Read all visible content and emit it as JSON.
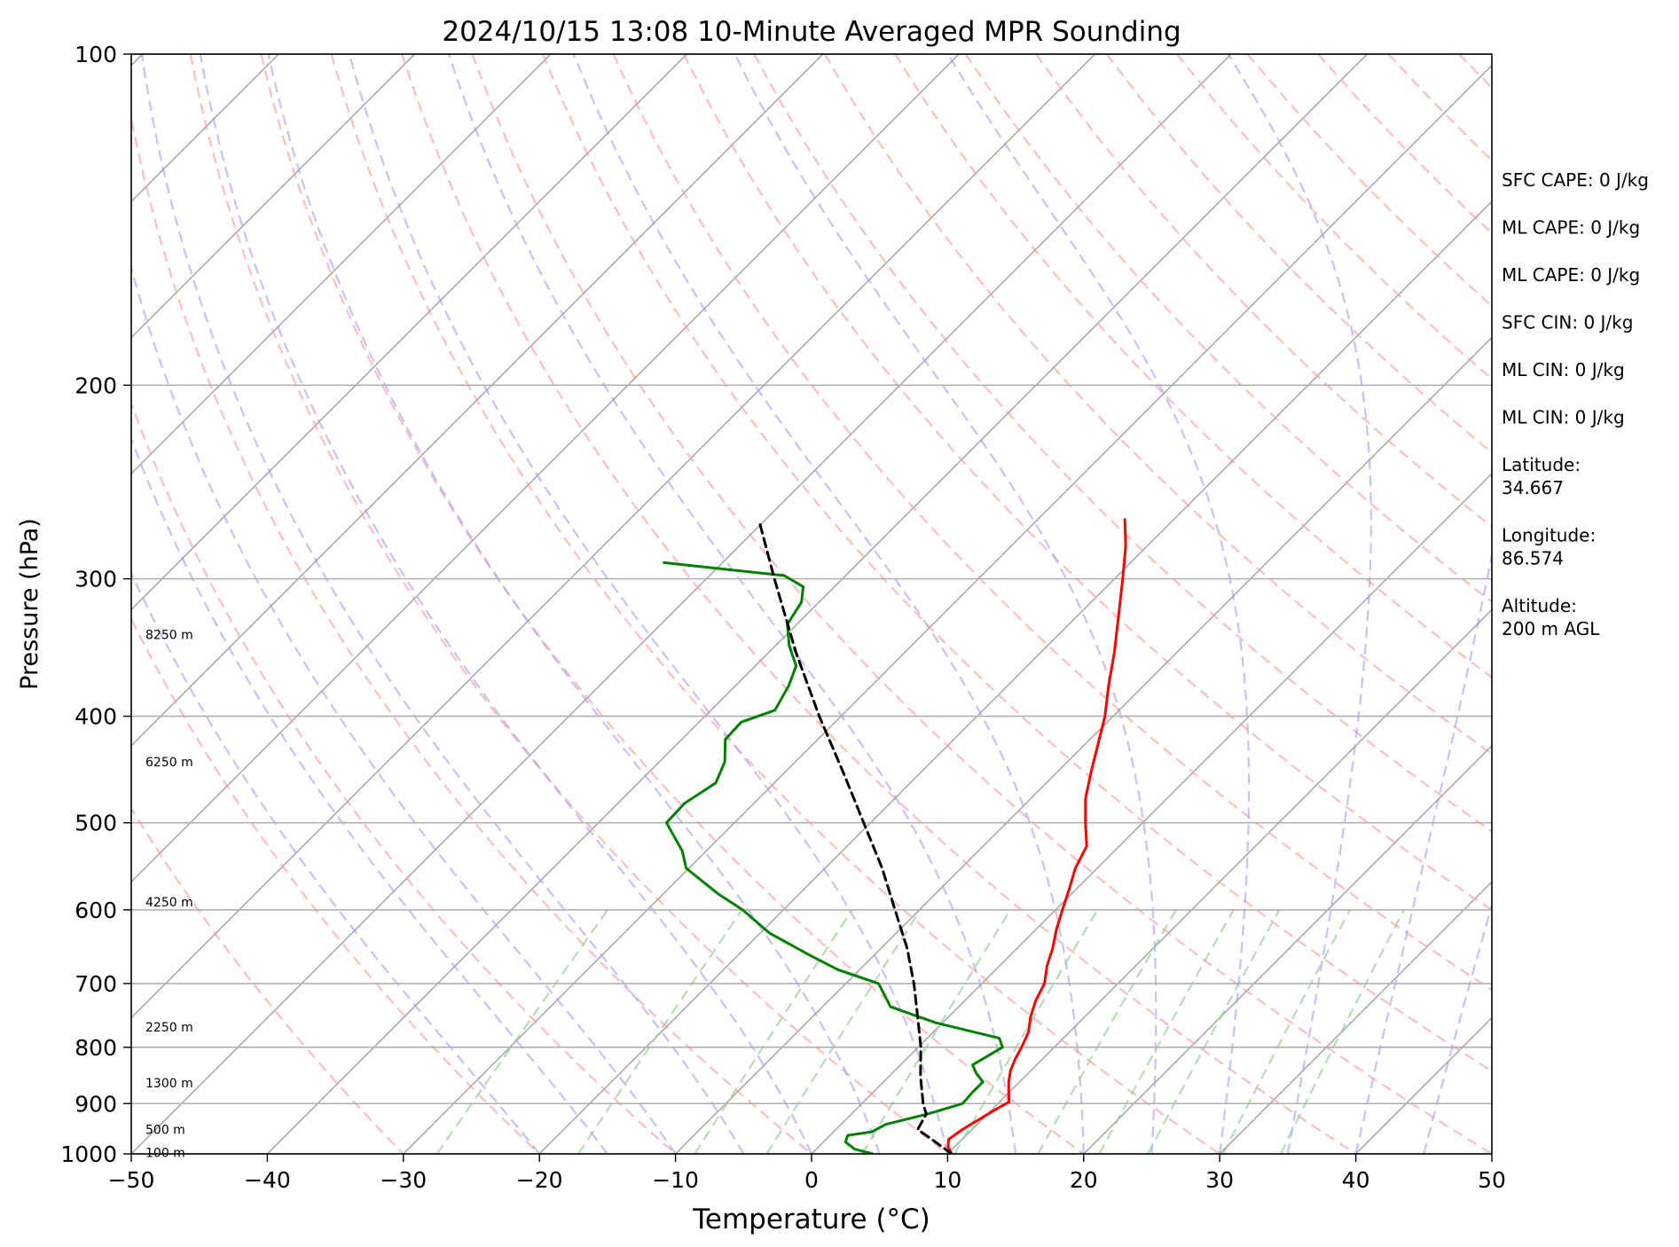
{
  "chart_data": {
    "type": "line",
    "title": "2024/10/15 13:08 10-Minute Averaged MPR Sounding",
    "xlabel": "Temperature (°C)",
    "ylabel": "Pressure (hPa)",
    "xlim": [
      -50,
      50
    ],
    "ylim": [
      1000,
      100
    ],
    "y_scale": "log",
    "x_ticks": [
      "−50",
      "−40",
      "−30",
      "−20",
      "−10",
      "0",
      "10",
      "20",
      "30",
      "40",
      "50"
    ],
    "x_tick_values": [
      -50,
      -40,
      -30,
      -20,
      -10,
      0,
      10,
      20,
      30,
      40,
      50
    ],
    "y_ticks": [
      "100",
      "200",
      "300",
      "400",
      "500",
      "600",
      "700",
      "800",
      "900",
      "1000"
    ],
    "y_tick_values": [
      100,
      200,
      300,
      400,
      500,
      600,
      700,
      800,
      900,
      1000
    ],
    "grid": "horizontal at pressure ticks",
    "background_lines": {
      "isotherms": {
        "color": "#a9a9a9",
        "style": "solid",
        "skew_deg": 45
      },
      "dry_adiabats": {
        "color": "#ff9999",
        "style": "dashed"
      },
      "moist_adiabats": {
        "color": "#9999ff",
        "style": "dashed"
      },
      "mixing_ratio": {
        "color": "#99cc99",
        "style": "dashed"
      }
    },
    "series": [
      {
        "color": "#ff0000",
        "points": [
          {
            "p": 1000,
            "t": 10.3
          },
          {
            "p": 985,
            "t": 9.5
          },
          {
            "p": 970,
            "t": 9.0
          },
          {
            "p": 950,
            "t": 9.3
          },
          {
            "p": 930,
            "t": 9.8
          },
          {
            "p": 910,
            "t": 10.3
          },
          {
            "p": 897,
            "t": 10.7
          },
          {
            "p": 875,
            "t": 9.8
          },
          {
            "p": 860,
            "t": 9.2
          },
          {
            "p": 840,
            "t": 8.5
          },
          {
            "p": 820,
            "t": 8.0
          },
          {
            "p": 800,
            "t": 7.6
          },
          {
            "p": 775,
            "t": 7.0
          },
          {
            "p": 750,
            "t": 6.0
          },
          {
            "p": 725,
            "t": 5.2
          },
          {
            "p": 700,
            "t": 4.6
          },
          {
            "p": 675,
            "t": 3.5
          },
          {
            "p": 650,
            "t": 2.6
          },
          {
            "p": 625,
            "t": 1.5
          },
          {
            "p": 600,
            "t": 0.5
          },
          {
            "p": 575,
            "t": -0.5
          },
          {
            "p": 550,
            "t": -1.6
          },
          {
            "p": 525,
            "t": -2.4
          },
          {
            "p": 500,
            "t": -4.2
          },
          {
            "p": 475,
            "t": -6.0
          },
          {
            "p": 450,
            "t": -7.5
          },
          {
            "p": 425,
            "t": -9.0
          },
          {
            "p": 400,
            "t": -10.6
          },
          {
            "p": 375,
            "t": -12.6
          },
          {
            "p": 350,
            "t": -14.6
          },
          {
            "p": 325,
            "t": -16.9
          },
          {
            "p": 300,
            "t": -19.4
          },
          {
            "p": 280,
            "t": -21.6
          },
          {
            "p": 265,
            "t": -23.6
          }
        ]
      },
      {
        "color": "#008000",
        "points": [
          {
            "p": 1000,
            "t": 4.5
          },
          {
            "p": 990,
            "t": 2.8
          },
          {
            "p": 975,
            "t": 1.6
          },
          {
            "p": 962,
            "t": 1.3
          },
          {
            "p": 955,
            "t": 2.8
          },
          {
            "p": 940,
            "t": 3.3
          },
          {
            "p": 920,
            "t": 5.6
          },
          {
            "p": 900,
            "t": 7.4
          },
          {
            "p": 880,
            "t": 7.3
          },
          {
            "p": 860,
            "t": 7.3
          },
          {
            "p": 845,
            "t": 6.2
          },
          {
            "p": 830,
            "t": 5.3
          },
          {
            "p": 820,
            "t": 5.6
          },
          {
            "p": 800,
            "t": 6.2
          },
          {
            "p": 785,
            "t": 5.3
          },
          {
            "p": 760,
            "t": -0.5
          },
          {
            "p": 735,
            "t": -5.0
          },
          {
            "p": 700,
            "t": -7.6
          },
          {
            "p": 680,
            "t": -11.6
          },
          {
            "p": 660,
            "t": -14.7
          },
          {
            "p": 630,
            "t": -19.3
          },
          {
            "p": 600,
            "t": -23.0
          },
          {
            "p": 580,
            "t": -26.0
          },
          {
            "p": 550,
            "t": -30.2
          },
          {
            "p": 530,
            "t": -31.8
          },
          {
            "p": 500,
            "t": -35.0
          },
          {
            "p": 480,
            "t": -35.1
          },
          {
            "p": 460,
            "t": -34.3
          },
          {
            "p": 440,
            "t": -35.2
          },
          {
            "p": 420,
            "t": -36.8
          },
          {
            "p": 405,
            "t": -36.9
          },
          {
            "p": 395,
            "t": -35.3
          },
          {
            "p": 375,
            "t": -36.1
          },
          {
            "p": 360,
            "t": -37.0
          },
          {
            "p": 345,
            "t": -39.0
          },
          {
            "p": 330,
            "t": -40.7
          },
          {
            "p": 315,
            "t": -41.3
          },
          {
            "p": 305,
            "t": -42.3
          },
          {
            "p": 298,
            "t": -44.5
          },
          {
            "p": 290,
            "t": -54.3
          }
        ]
      },
      {
        "color": "#000000",
        "style": "dashed",
        "points": [
          {
            "p": 1000,
            "t": 10.3
          },
          {
            "p": 975,
            "t": 8.2
          },
          {
            "p": 950,
            "t": 6.0
          },
          {
            "p": 920,
            "t": 5.5
          },
          {
            "p": 900,
            "t": 4.5
          },
          {
            "p": 850,
            "t": 2.3
          },
          {
            "p": 800,
            "t": 0.2
          },
          {
            "p": 750,
            "t": -2.3
          },
          {
            "p": 700,
            "t": -5.0
          },
          {
            "p": 650,
            "t": -8.1
          },
          {
            "p": 600,
            "t": -11.8
          },
          {
            "p": 550,
            "t": -15.8
          },
          {
            "p": 500,
            "t": -20.5
          },
          {
            "p": 450,
            "t": -25.7
          },
          {
            "p": 400,
            "t": -31.6
          },
          {
            "p": 350,
            "t": -38.0
          },
          {
            "p": 300,
            "t": -45.0
          },
          {
            "p": 265,
            "t": -50.5
          }
        ]
      }
    ],
    "height_labels": [
      {
        "text": "100 m",
        "p": 997
      },
      {
        "text": "500 m",
        "p": 950
      },
      {
        "text": "1300 m",
        "p": 862
      },
      {
        "text": "2250 m",
        "p": 767
      },
      {
        "text": "4250 m",
        "p": 590
      },
      {
        "text": "6250 m",
        "p": 440
      },
      {
        "text": "8250 m",
        "p": 337
      }
    ],
    "info_panel": [
      "SFC CAPE: 0 J/kg",
      "ML CAPE: 0 J/kg",
      "ML CAPE: 0 J/kg",
      "SFC CIN: 0 J/kg",
      "ML CIN: 0 J/kg",
      "ML CIN: 0 J/kg",
      "Latitude:\n34.667",
      "Longitude:\n86.574",
      "Altitude:\n200 m AGL"
    ]
  }
}
